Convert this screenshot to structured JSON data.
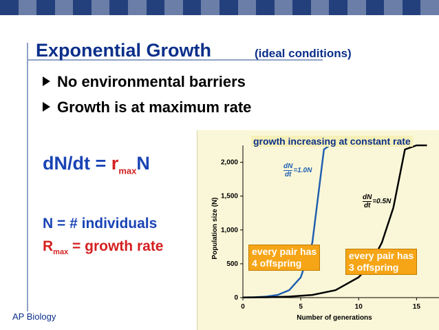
{
  "title": "Exponential Growth",
  "subtitle": "(ideal conditions)",
  "bullets": [
    "No environmental barriers",
    "Growth is at maximum rate"
  ],
  "equation": {
    "lhs": "dN/dt",
    "equals": "=",
    "r": "r",
    "sub": "max",
    "n": "N"
  },
  "definitions": {
    "n_def": "N = # individuals",
    "r_letter": "R",
    "r_sub": "max",
    "r_def": "= growth rate"
  },
  "footer": "AP Biology",
  "banner": "growth increasing at constant rate",
  "callouts": {
    "left_line1": "every pair has",
    "left_line2": "4 offspring",
    "right_line1": "every pair has",
    "right_line2": "3 offspring"
  },
  "rate_labels": {
    "blue_num": "dN",
    "blue_den": "dt",
    "blue_val": "=1.0N",
    "black_num": "dN",
    "black_den": "dt",
    "black_val": "=0.5N"
  },
  "colors": {
    "title": "#0b2f8a",
    "equation_blue": "#1a44b5",
    "equation_red": "#d42020",
    "callout": "#f6a516",
    "curve_fast": "#1f5fb0",
    "curve_slow": "#000000",
    "chart_bg": "#faf7d8"
  },
  "chart_data": {
    "type": "line",
    "xlabel": "Number of generations",
    "ylabel": "Population size (N)",
    "xlim": [
      0,
      17
    ],
    "ylim": [
      0,
      2250
    ],
    "xticks": [
      0,
      5,
      10,
      15
    ],
    "yticks": [
      0,
      500,
      1000,
      1500,
      2000
    ],
    "ytick_labels": [
      "0",
      "500",
      "1,000",
      "1,500",
      "2,000"
    ],
    "grid": false,
    "series": [
      {
        "name": "dN/dt = 1.0N",
        "color": "#1f5fb0",
        "x": [
          0,
          1,
          2,
          3,
          4,
          5,
          6,
          7,
          7.5,
          7.9
        ],
        "y": [
          2,
          5,
          15,
          40,
          110,
          300,
          810,
          2190,
          2250,
          2250
        ]
      },
      {
        "name": "dN/dt = 0.5N",
        "color": "#000000",
        "x": [
          0,
          2,
          4,
          6,
          8,
          10,
          11,
          12,
          13,
          14,
          15,
          15.5,
          15.9
        ],
        "y": [
          2,
          5,
          15,
          40,
          110,
          300,
          490,
          810,
          1330,
          2190,
          2250,
          2250,
          2250
        ]
      }
    ]
  }
}
